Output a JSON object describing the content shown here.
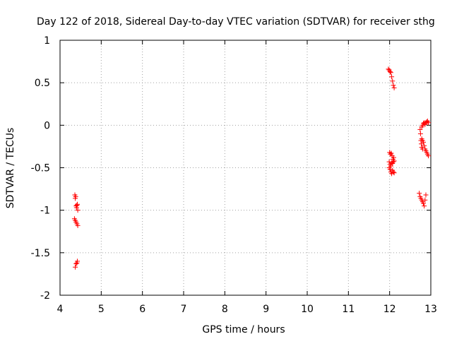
{
  "chart_data": {
    "type": "scatter",
    "title": "Day 122 of 2018, Sidereal Day-to-day VTEC variation (SDTVAR) for receiver sthg",
    "xlabel": "GPS time / hours",
    "ylabel": "SDTVAR / TECUs",
    "xlim": [
      4,
      13
    ],
    "ylim": [
      -2,
      1
    ],
    "x_ticks": [
      4,
      5,
      6,
      7,
      8,
      9,
      10,
      11,
      12,
      13
    ],
    "y_ticks": [
      1,
      0.5,
      0,
      -0.5,
      -1,
      -1.5,
      -2
    ],
    "x_tick_labels": [
      "4",
      "5",
      "6",
      "7",
      "8",
      "9",
      "10",
      "11",
      "12",
      "13"
    ],
    "y_tick_labels": [
      "1",
      "0.5",
      "0",
      "-0.5",
      "-1",
      "-1.5",
      "-2"
    ],
    "grid": true,
    "marker": "+",
    "color": "#ff0000",
    "series": [
      {
        "points": [
          [
            4.36,
            -0.82
          ],
          [
            4.37,
            -0.86
          ],
          [
            4.38,
            -0.84
          ],
          [
            4.39,
            -0.95
          ],
          [
            4.4,
            -0.97
          ],
          [
            4.41,
            -0.94
          ],
          [
            4.42,
            -0.93
          ],
          [
            4.43,
            -1.0
          ],
          [
            4.35,
            -1.1
          ],
          [
            4.37,
            -1.12
          ],
          [
            4.39,
            -1.14
          ],
          [
            4.41,
            -1.16
          ],
          [
            4.43,
            -1.18
          ],
          [
            4.37,
            -1.67
          ],
          [
            4.39,
            -1.63
          ],
          [
            4.41,
            -1.62
          ],
          [
            4.42,
            -1.6
          ],
          [
            11.97,
            0.66
          ],
          [
            11.99,
            0.65
          ],
          [
            12.01,
            0.63
          ],
          [
            12.03,
            0.62
          ],
          [
            12.05,
            0.57
          ],
          [
            12.07,
            0.52
          ],
          [
            12.09,
            0.47
          ],
          [
            12.11,
            0.44
          ],
          [
            12.0,
            -0.32
          ],
          [
            12.02,
            -0.34
          ],
          [
            12.04,
            -0.33
          ],
          [
            12.06,
            -0.36
          ],
          [
            12.08,
            -0.4
          ],
          [
            12.1,
            -0.38
          ],
          [
            11.99,
            -0.43
          ],
          [
            12.01,
            -0.46
          ],
          [
            12.03,
            -0.48
          ],
          [
            12.05,
            -0.44
          ],
          [
            12.07,
            -0.45
          ],
          [
            12.09,
            -0.43
          ],
          [
            12.11,
            -0.42
          ],
          [
            11.99,
            -0.5
          ],
          [
            12.01,
            -0.52
          ],
          [
            12.03,
            -0.55
          ],
          [
            12.05,
            -0.57
          ],
          [
            12.07,
            -0.53
          ],
          [
            12.09,
            -0.55
          ],
          [
            12.11,
            -0.56
          ],
          [
            12.74,
            -0.05
          ],
          [
            12.75,
            -0.1
          ],
          [
            12.76,
            -0.18
          ],
          [
            12.77,
            -0.22
          ],
          [
            12.78,
            -0.26
          ],
          [
            12.8,
            -0.28
          ],
          [
            12.78,
            -0.02
          ],
          [
            12.8,
            0.0
          ],
          [
            12.82,
            0.02
          ],
          [
            12.84,
            0.03
          ],
          [
            12.86,
            0.01
          ],
          [
            12.88,
            0.03
          ],
          [
            12.9,
            0.04
          ],
          [
            12.92,
            0.05
          ],
          [
            12.94,
            0.03
          ],
          [
            12.82,
            -0.2
          ],
          [
            12.84,
            -0.24
          ],
          [
            12.86,
            -0.28
          ],
          [
            12.88,
            -0.3
          ],
          [
            12.9,
            -0.32
          ],
          [
            12.92,
            -0.34
          ],
          [
            12.94,
            -0.36
          ],
          [
            12.78,
            -0.16
          ],
          [
            12.8,
            -0.18
          ],
          [
            12.72,
            -0.8
          ],
          [
            12.74,
            -0.84
          ],
          [
            12.76,
            -0.86
          ],
          [
            12.78,
            -0.88
          ],
          [
            12.8,
            -0.9
          ],
          [
            12.82,
            -0.92
          ],
          [
            12.84,
            -0.95
          ],
          [
            12.86,
            -0.88
          ],
          [
            12.88,
            -0.82
          ]
        ]
      }
    ]
  }
}
